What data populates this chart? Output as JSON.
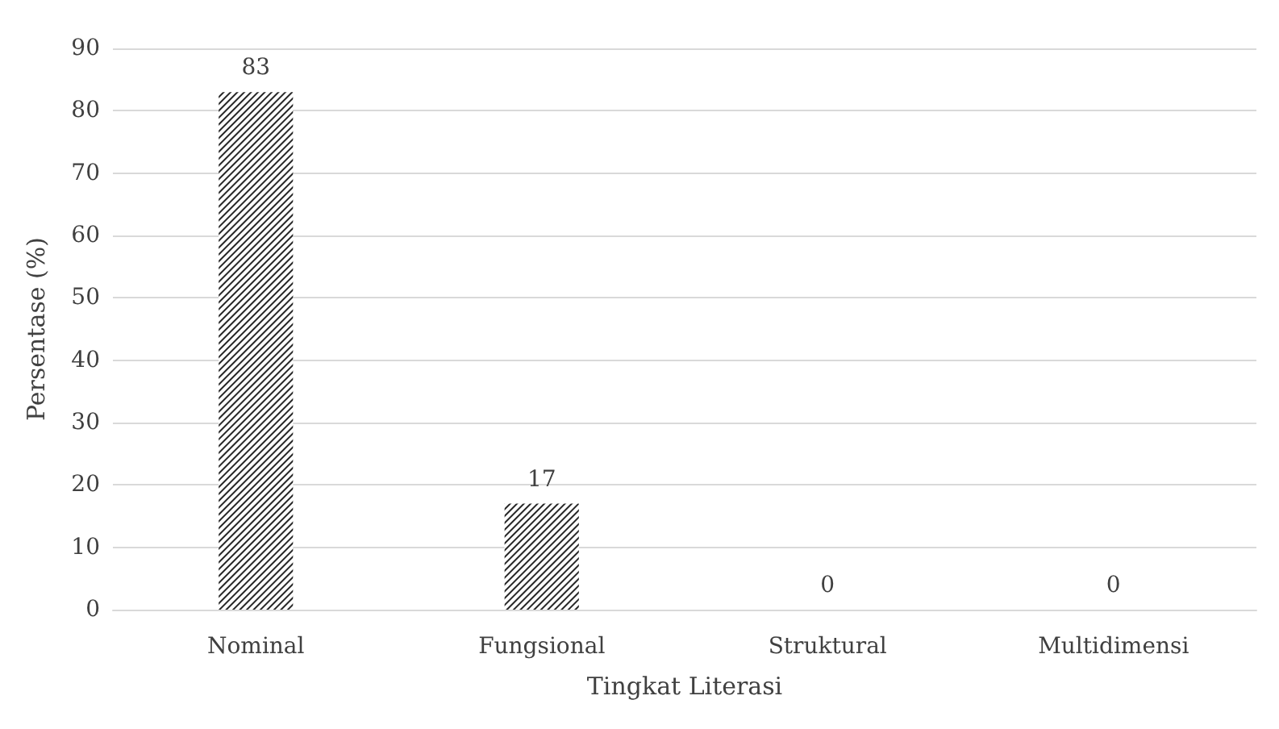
{
  "chart_data": {
    "type": "bar",
    "xlabel": "Tingkat Literasi",
    "ylabel": "Persentase (%)",
    "categories": [
      "Nominal",
      "Fungsional",
      "Struktural",
      "Multidimensi"
    ],
    "values": [
      83,
      17,
      0,
      0
    ],
    "color": "#262626",
    "ylim": [
      0,
      90
    ],
    "yticks": [
      0,
      10,
      20,
      30,
      40,
      50,
      60,
      70,
      80,
      90
    ],
    "grid": "y",
    "data_labels": true
  }
}
